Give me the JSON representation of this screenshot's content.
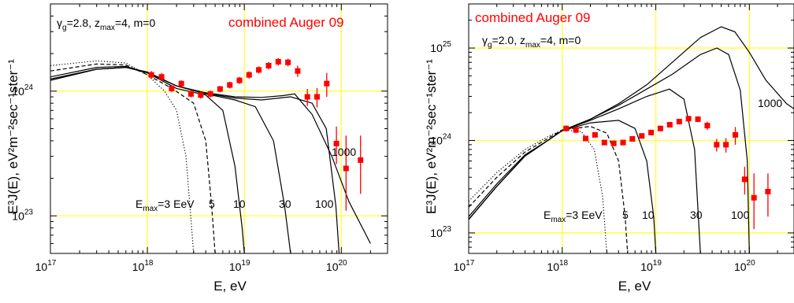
{
  "chart_data": [
    {
      "type": "line",
      "ylabel": "E³J(E), eV²m⁻²sec⁻¹ster⁻¹",
      "xlabel": "E, eV",
      "x_scale": "log",
      "y_scale": "log",
      "xlim": [
        1e+17,
        3e+20
      ],
      "ylim": [
        5e+22,
        5e+24
      ],
      "x_ticks": [
        "10^17",
        "10^18",
        "10^19",
        "10^20"
      ],
      "y_ticks": [
        "10^23",
        "10^24"
      ],
      "grid": "on",
      "grid_color": "#ffff33",
      "legend_text": "combined Auger 09",
      "param_text": {
        "g": "γ",
        "g_sub": "g",
        "g_val": "=2.8, z",
        "z_sub": "max",
        "z_val": "=4, m=0"
      },
      "curve_labels": [
        {
          "text": "E",
          "sub": "max",
          "rest": "=3 EeV"
        },
        {
          "text": "5"
        },
        {
          "text": "10"
        },
        {
          "text": "30"
        },
        {
          "text": "100"
        },
        {
          "text": "1000"
        }
      ],
      "series": [
        {
          "line": "dotted",
          "emax": 3e+18,
          "x": [
            1e+17,
            3e+17,
            6e+17,
            1e+18,
            1.5e+18,
            2e+18,
            2.5e+18,
            2.8e+18,
            3e+18
          ],
          "y": [
            1.6e+24,
            1.75e+24,
            1.68e+24,
            1.35e+24,
            1e+24,
            7e+23,
            3e+23,
            1e+23,
            5e+22
          ]
        },
        {
          "line": "dashed",
          "emax": 5e+18,
          "x": [
            1e+17,
            3e+17,
            6e+17,
            1e+18,
            1.8e+18,
            3e+18,
            4e+18,
            4.6e+18,
            5e+18
          ],
          "y": [
            1.45e+24,
            1.65e+24,
            1.62e+24,
            1.35e+24,
            1.05e+24,
            8e+23,
            4e+23,
            1.2e+23,
            5e+22
          ]
        },
        {
          "line": "solid",
          "emax": 1e+19,
          "x": [
            1e+17,
            3e+17,
            6e+17,
            1e+18,
            2e+18,
            4e+18,
            6e+18,
            8e+18,
            9.5e+18,
            1e+19
          ],
          "y": [
            1.3e+24,
            1.55e+24,
            1.58e+24,
            1.4e+24,
            1.05e+24,
            9.3e+23,
            7e+23,
            2.5e+23,
            8e+22,
            5e+22
          ]
        },
        {
          "line": "solid",
          "emax": 3e+19,
          "x": [
            1e+17,
            3e+17,
            6e+17,
            1e+18,
            2e+18,
            4e+18,
            8e+18,
            1.3e+19,
            2e+19,
            2.6e+19,
            3e+19
          ],
          "y": [
            1.25e+24,
            1.5e+24,
            1.55e+24,
            1.4e+24,
            1.1e+24,
            9.5e+23,
            8.5e+23,
            7.5e+23,
            4e+23,
            1.2e+23,
            5e+22
          ]
        },
        {
          "line": "solid",
          "emax": 1e+20,
          "x": [
            1e+17,
            3e+17,
            6e+17,
            1e+18,
            2e+18,
            4e+18,
            8e+18,
            1.5e+19,
            3e+19,
            5e+19,
            7e+19,
            8.8e+19,
            9.5e+19
          ],
          "y": [
            1.22e+24,
            1.5e+24,
            1.55e+24,
            1.42e+24,
            1.1e+24,
            9.6e+23,
            8.8e+23,
            8.5e+23,
            9e+23,
            8e+23,
            5e+23,
            1.2e+23,
            5e+22
          ]
        },
        {
          "line": "solid",
          "emax": 1e+21,
          "x": [
            1e+17,
            3e+17,
            6e+17,
            1e+18,
            2e+18,
            4e+18,
            8e+18,
            1.5e+19,
            2.5e+19,
            3.3e+19,
            5e+19,
            8e+19,
            1.2e+20,
            2e+20
          ],
          "y": [
            1.22e+24,
            1.5e+24,
            1.55e+24,
            1.42e+24,
            1.1e+24,
            9.7e+23,
            9e+23,
            8.9e+23,
            9.2e+23,
            9.5e+23,
            6.5e+23,
            3e+23,
            1.3e+23,
            6e+22
          ]
        }
      ],
      "data_points": {
        "name": "combined Auger 09",
        "color": "#ff0000",
        "points": [
          {
            "x": 1.1e+18,
            "y": 1.35e+24,
            "lo": 1.25e+24,
            "hi": 1.45e+24
          },
          {
            "x": 1.4e+18,
            "y": 1.3e+24,
            "lo": 1.2e+24,
            "hi": 1.4e+24
          },
          {
            "x": 1.78e+18,
            "y": 1.05e+24,
            "lo": 9.8e+23,
            "hi": 1.12e+24
          },
          {
            "x": 2.24e+18,
            "y": 1.15e+24,
            "lo": 1.08e+24,
            "hi": 1.22e+24
          },
          {
            "x": 2.82e+18,
            "y": 9.5e+23,
            "lo": 8.9e+23,
            "hi": 1.01e+24
          },
          {
            "x": 3.55e+18,
            "y": 9.3e+23,
            "lo": 8.7e+23,
            "hi": 9.9e+23
          },
          {
            "x": 4.47e+18,
            "y": 9.5e+23,
            "lo": 8.9e+23,
            "hi": 1.01e+24
          },
          {
            "x": 5.62e+18,
            "y": 1.04e+24,
            "lo": 9.8e+23,
            "hi": 1.1e+24
          },
          {
            "x": 7.08e+18,
            "y": 1.12e+24,
            "lo": 1.05e+24,
            "hi": 1.19e+24
          },
          {
            "x": 8.91e+18,
            "y": 1.22e+24,
            "lo": 1.14e+24,
            "hi": 1.3e+24
          },
          {
            "x": 1.12e+19,
            "y": 1.35e+24,
            "lo": 1.26e+24,
            "hi": 1.44e+24
          },
          {
            "x": 1.41e+19,
            "y": 1.48e+24,
            "lo": 1.38e+24,
            "hi": 1.58e+24
          },
          {
            "x": 1.78e+19,
            "y": 1.6e+24,
            "lo": 1.49e+24,
            "hi": 1.71e+24
          },
          {
            "x": 2.24e+19,
            "y": 1.72e+24,
            "lo": 1.6e+24,
            "hi": 1.84e+24
          },
          {
            "x": 2.82e+19,
            "y": 1.7e+24,
            "lo": 1.58e+24,
            "hi": 1.82e+24
          },
          {
            "x": 3.55e+19,
            "y": 1.45e+24,
            "lo": 1.3e+24,
            "hi": 1.6e+24
          },
          {
            "x": 4.47e+19,
            "y": 9e+23,
            "lo": 7.6e+23,
            "hi": 1.04e+24
          },
          {
            "x": 5.62e+19,
            "y": 9e+23,
            "lo": 7.4e+23,
            "hi": 1.06e+24
          },
          {
            "x": 7.08e+19,
            "y": 1.15e+24,
            "lo": 9e+23,
            "hi": 1.4e+24
          },
          {
            "x": 8.91e+19,
            "y": 3.8e+23,
            "lo": 2.6e+23,
            "hi": 5.2e+23
          },
          {
            "x": 1.12e+20,
            "y": 2.4e+23,
            "lo": 1.1e+23,
            "hi": 4.4e+23
          },
          {
            "x": 1.58e+20,
            "y": 2.8e+23,
            "lo": 1.5e+23,
            "hi": 4.4e+23
          }
        ]
      }
    },
    {
      "type": "line",
      "ylabel": "E³J(E), eV²m⁻²sec⁻¹ster⁻¹",
      "xlabel": "E, eV",
      "x_scale": "log",
      "y_scale": "log",
      "xlim": [
        1e+17,
        3e+20
      ],
      "ylim": [
        6e+22,
        3e+25
      ],
      "x_ticks": [
        "10^17",
        "10^18",
        "10^19",
        "10^20"
      ],
      "y_ticks": [
        "10^23",
        "10^24",
        "10^25"
      ],
      "grid": "on",
      "grid_color": "#ffff33",
      "legend_text": "combined Auger 09",
      "param_text": {
        "g": "γ",
        "g_sub": "g",
        "g_val": "=2.0, z",
        "z_sub": "max",
        "z_val": "=4, m=0"
      },
      "curve_labels": [
        {
          "text": "E",
          "sub": "max",
          "rest": "=3 EeV"
        },
        {
          "text": "5"
        },
        {
          "text": "10"
        },
        {
          "text": "30"
        },
        {
          "text": "100"
        },
        {
          "text": "1000"
        }
      ],
      "series": [
        {
          "line": "dotted",
          "emax": 3e+18,
          "x": [
            1e+17,
            2e+17,
            4e+17,
            7e+17,
            1e+18,
            1.6e+18,
            2.2e+18,
            2.7e+18,
            3e+18
          ],
          "y": [
            2.2e+23,
            4.5e+23,
            8e+23,
            1.1e+24,
            1.3e+24,
            1.25e+24,
            8e+23,
            2.5e+23,
            6e+22
          ]
        },
        {
          "line": "dashed",
          "emax": 5e+18,
          "x": [
            1e+17,
            2e+17,
            4e+17,
            7e+17,
            1e+18,
            2e+18,
            3e+18,
            4e+18,
            4.7e+18,
            5e+18
          ],
          "y": [
            1.9e+23,
            4e+23,
            7.5e+23,
            1.05e+24,
            1.3e+24,
            1.42e+24,
            1.2e+24,
            6e+23,
            1.5e+23,
            6e+22
          ]
        },
        {
          "line": "solid",
          "emax": 1e+19,
          "x": [
            1e+17,
            2e+17,
            4e+17,
            7e+17,
            1e+18,
            2e+18,
            4e+18,
            6e+18,
            8e+18,
            9.5e+18,
            1e+19
          ],
          "y": [
            1.5e+23,
            3.4e+23,
            7e+23,
            1e+24,
            1.28e+24,
            1.55e+24,
            1.65e+24,
            1.35e+24,
            6e+23,
            1.5e+23,
            6e+22
          ]
        },
        {
          "line": "solid",
          "emax": 3e+19,
          "x": [
            1e+17,
            2e+17,
            4e+17,
            7e+17,
            1e+18,
            2e+18,
            4e+18,
            8e+18,
            1.4e+19,
            2e+19,
            2.6e+19,
            3e+19
          ],
          "y": [
            1.4e+23,
            3.2e+23,
            6.8e+23,
            1e+24,
            1.28e+24,
            1.65e+24,
            2.2e+24,
            3e+24,
            3.6e+24,
            2.8e+24,
            8e+23,
            6e+22
          ]
        },
        {
          "line": "solid",
          "emax": 1e+20,
          "x": [
            1e+17,
            2e+17,
            4e+17,
            7e+17,
            1e+18,
            2e+18,
            4e+18,
            8e+18,
            1.5e+19,
            3e+19,
            4.5e+19,
            6e+19,
            8e+19,
            9.5e+19,
            1e+20
          ],
          "y": [
            1.4e+23,
            3.2e+23,
            6.8e+23,
            1e+24,
            1.28e+24,
            1.7e+24,
            2.4e+24,
            3.6e+24,
            5.2e+24,
            8.5e+24,
            1e+25,
            8.5e+24,
            3.5e+24,
            6e+23,
            6e+22
          ]
        },
        {
          "line": "solid",
          "emax": 1e+21,
          "x": [
            1e+17,
            2e+17,
            4e+17,
            7e+17,
            1e+18,
            2e+18,
            4e+18,
            8e+18,
            1.5e+19,
            3e+19,
            5e+19,
            7e+19,
            1e+20,
            1.5e+20,
            2.5e+20,
            3e+20
          ],
          "y": [
            1.4e+23,
            3.2e+23,
            6.8e+23,
            1e+24,
            1.28e+24,
            1.7e+24,
            2.5e+24,
            4e+24,
            7e+24,
            1.3e+25,
            1.7e+25,
            1.5e+25,
            9e+24,
            4.5e+24,
            2.5e+24,
            2.2e+24
          ]
        }
      ],
      "data_points": {
        "name": "combined Auger 09",
        "color": "#ff0000",
        "points": [
          {
            "x": 1.1e+18,
            "y": 1.35e+24,
            "lo": 1.25e+24,
            "hi": 1.45e+24
          },
          {
            "x": 1.4e+18,
            "y": 1.3e+24,
            "lo": 1.2e+24,
            "hi": 1.4e+24
          },
          {
            "x": 1.78e+18,
            "y": 1.05e+24,
            "lo": 9.8e+23,
            "hi": 1.12e+24
          },
          {
            "x": 2.24e+18,
            "y": 1.15e+24,
            "lo": 1.08e+24,
            "hi": 1.22e+24
          },
          {
            "x": 2.82e+18,
            "y": 9.5e+23,
            "lo": 8.9e+23,
            "hi": 1.01e+24
          },
          {
            "x": 3.55e+18,
            "y": 9.3e+23,
            "lo": 8.7e+23,
            "hi": 9.9e+23
          },
          {
            "x": 4.47e+18,
            "y": 9.5e+23,
            "lo": 8.9e+23,
            "hi": 1.01e+24
          },
          {
            "x": 5.62e+18,
            "y": 1.04e+24,
            "lo": 9.8e+23,
            "hi": 1.1e+24
          },
          {
            "x": 7.08e+18,
            "y": 1.12e+24,
            "lo": 1.05e+24,
            "hi": 1.19e+24
          },
          {
            "x": 8.91e+18,
            "y": 1.22e+24,
            "lo": 1.14e+24,
            "hi": 1.3e+24
          },
          {
            "x": 1.12e+19,
            "y": 1.35e+24,
            "lo": 1.26e+24,
            "hi": 1.44e+24
          },
          {
            "x": 1.41e+19,
            "y": 1.48e+24,
            "lo": 1.38e+24,
            "hi": 1.58e+24
          },
          {
            "x": 1.78e+19,
            "y": 1.6e+24,
            "lo": 1.49e+24,
            "hi": 1.71e+24
          },
          {
            "x": 2.24e+19,
            "y": 1.72e+24,
            "lo": 1.6e+24,
            "hi": 1.84e+24
          },
          {
            "x": 2.82e+19,
            "y": 1.7e+24,
            "lo": 1.58e+24,
            "hi": 1.82e+24
          },
          {
            "x": 3.55e+19,
            "y": 1.45e+24,
            "lo": 1.3e+24,
            "hi": 1.6e+24
          },
          {
            "x": 4.47e+19,
            "y": 9e+23,
            "lo": 7.6e+23,
            "hi": 1.04e+24
          },
          {
            "x": 5.62e+19,
            "y": 9e+23,
            "lo": 7.4e+23,
            "hi": 1.06e+24
          },
          {
            "x": 7.08e+19,
            "y": 1.15e+24,
            "lo": 9e+23,
            "hi": 1.4e+24
          },
          {
            "x": 8.91e+19,
            "y": 3.8e+23,
            "lo": 2.6e+23,
            "hi": 5.2e+23
          },
          {
            "x": 1.12e+20,
            "y": 2.4e+23,
            "lo": 1.1e+23,
            "hi": 4.4e+23
          },
          {
            "x": 1.58e+20,
            "y": 2.8e+23,
            "lo": 1.5e+23,
            "hi": 4.4e+23
          }
        ]
      }
    }
  ]
}
